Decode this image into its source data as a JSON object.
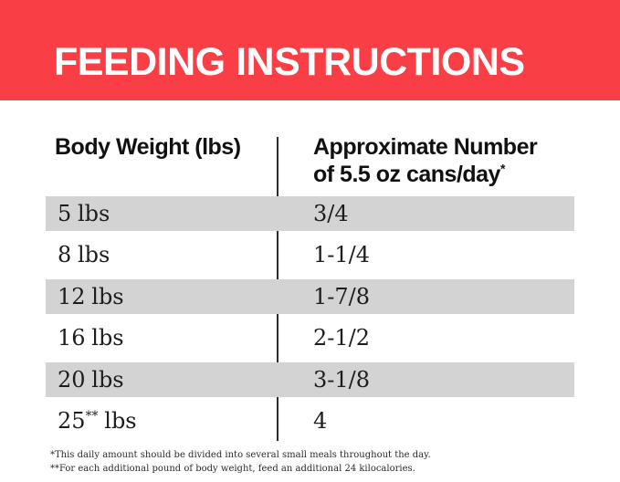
{
  "banner": {
    "title": "FEEDING INSTRUCTIONS",
    "bg_color": "#F93E46",
    "text_color": "#FFFFFF"
  },
  "table": {
    "stripe_color": "#D3D3D3",
    "header": {
      "col1": "Body Weight (lbs)",
      "col2_line1": "Approximate Number",
      "col2_line2": "of 5.5 oz cans/day",
      "col2_footnote_marker": "*"
    },
    "rows": [
      {
        "weight_num": "5",
        "weight_marker": "",
        "weight_unit": "lbs",
        "cans_per_day": "3/4"
      },
      {
        "weight_num": "8",
        "weight_marker": "",
        "weight_unit": "lbs",
        "cans_per_day": "1-1/4"
      },
      {
        "weight_num": "12",
        "weight_marker": "",
        "weight_unit": "lbs",
        "cans_per_day": "1-7/8"
      },
      {
        "weight_num": "16",
        "weight_marker": "",
        "weight_unit": "lbs",
        "cans_per_day": "2-1/2"
      },
      {
        "weight_num": "20",
        "weight_marker": "",
        "weight_unit": "lbs",
        "cans_per_day": "3-1/8"
      },
      {
        "weight_num": "25",
        "weight_marker": "**",
        "weight_unit": "lbs",
        "cans_per_day": "4"
      }
    ]
  },
  "footnotes": [
    "*This daily amount should be divided into several small meals throughout the day.",
    "**For each additional pound of body weight, feed an additional 24 kilocalories."
  ]
}
